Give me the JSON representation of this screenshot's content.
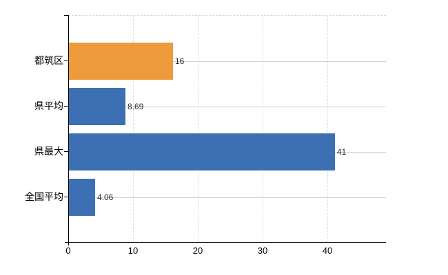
{
  "chart_data": {
    "type": "bar",
    "orientation": "horizontal",
    "title": "",
    "xlabel": "",
    "ylabel": "",
    "categories": [
      "都筑区",
      "県平均",
      "県最大",
      "全国平均"
    ],
    "category_names": [
      "tsuzuki-ku",
      "prefecture-average",
      "prefecture-maximum",
      "national-average"
    ],
    "values": [
      16,
      8.69,
      41,
      4.06
    ],
    "value_labels": [
      "16",
      "8.69",
      "41",
      "4.06"
    ],
    "bar_colors": [
      "#EC9A3C",
      "#3C70B3",
      "#3C70B3",
      "#3C70B3"
    ],
    "xticks": [
      "0",
      "10",
      "20",
      "30",
      "40"
    ],
    "xtick_values": [
      0,
      10,
      20,
      30,
      40
    ],
    "xlim": [
      0,
      49
    ],
    "grid": "on",
    "legend": "none"
  },
  "colors": {
    "background": "#ffffff",
    "axis": "#000000",
    "grid_horizontal": "#ccd5cc",
    "grid_vertical": "#dcdcdc",
    "plot_top_border": "#d8d8d8",
    "value_label_text": "#2b2b2b",
    "tick_label_text": "#000000",
    "accent_orange": "#EC9A3C",
    "accent_blue": "#3C70B3"
  }
}
